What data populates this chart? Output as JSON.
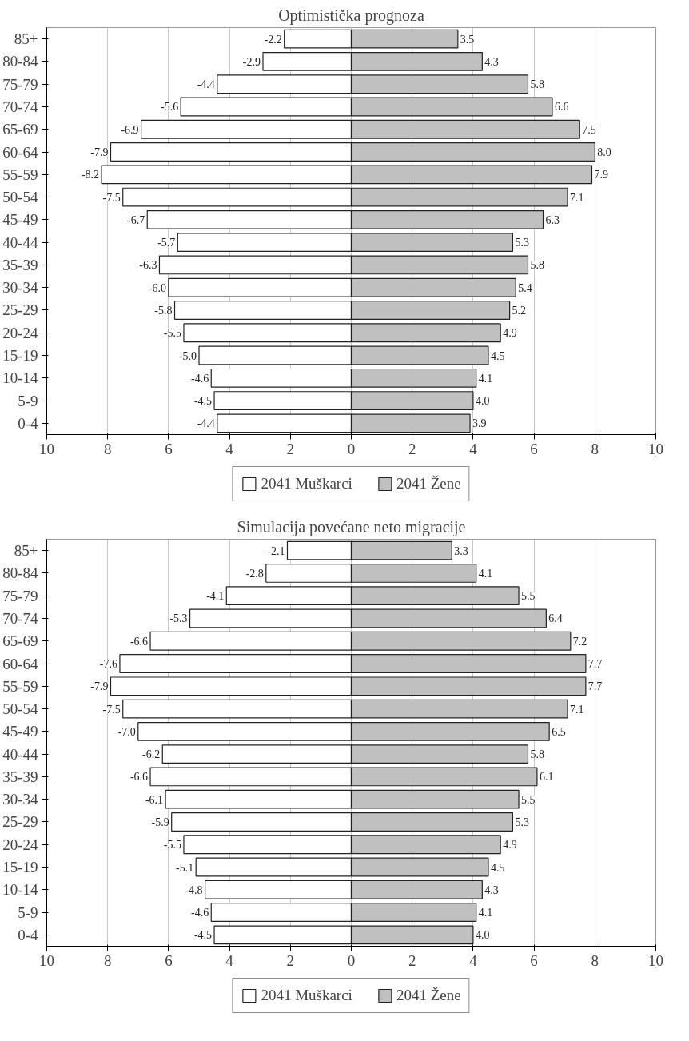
{
  "chart_data": [
    {
      "type": "bar",
      "orientation": "horizontal",
      "stacked": true,
      "title": "Optimistička prognoza",
      "categories": [
        "85+",
        "80-84",
        "75-79",
        "70-74",
        "65-69",
        "60-64",
        "55-59",
        "50-54",
        "45-49",
        "40-44",
        "35-39",
        "30-34",
        "25-29",
        "20-24",
        "15-19",
        "10-14",
        "5-9",
        "0-4"
      ],
      "series": [
        {
          "name": "2041 Muškarci",
          "color": "#ffffff",
          "values": [
            -2.2,
            -2.9,
            -4.4,
            -5.6,
            -6.9,
            -7.9,
            -8.2,
            -7.5,
            -6.7,
            -5.7,
            -6.3,
            -6.0,
            -5.8,
            -5.5,
            -5.0,
            -4.6,
            -4.5,
            -4.4
          ],
          "value_labels": [
            "-2.2",
            "-2.9",
            "-4.4",
            "-5.6",
            "-6.9",
            "-7.9",
            "-8.2",
            "-7.5",
            "-6.7",
            "-5.7",
            "-6.3",
            "-6.0",
            "-5.8",
            "-5.5",
            "-5.0",
            "-4.6",
            "-4.5",
            "-4.4"
          ]
        },
        {
          "name": "2041 Žene",
          "color": "#c0c0c0",
          "values": [
            3.5,
            4.3,
            5.8,
            6.6,
            7.5,
            8.0,
            7.9,
            7.1,
            6.3,
            5.3,
            5.8,
            5.4,
            5.2,
            4.9,
            4.5,
            4.1,
            4.0,
            3.9
          ],
          "value_labels": [
            "3.5",
            "4.3",
            "5.8",
            "6.6",
            "7.5",
            "8.0",
            "7.9",
            "7.1",
            "6.3",
            "5.3",
            "5.8",
            "5.4",
            "5.2",
            "4.9",
            "4.5",
            "4.1",
            "4.0",
            "3.9"
          ]
        }
      ],
      "xlim": [
        -10,
        10
      ],
      "xticks": [
        {
          "value": -10,
          "label": "10"
        },
        {
          "value": -8,
          "label": "8"
        },
        {
          "value": -6,
          "label": "6"
        },
        {
          "value": -4,
          "label": "4"
        },
        {
          "value": -2,
          "label": "2"
        },
        0,
        2,
        4,
        6,
        8,
        10
      ],
      "grid": "x",
      "legend": "bottom"
    },
    {
      "type": "bar",
      "orientation": "horizontal",
      "stacked": true,
      "title": "Simulacija povećane neto migracije",
      "categories": [
        "85+",
        "80-84",
        "75-79",
        "70-74",
        "65-69",
        "60-64",
        "55-59",
        "50-54",
        "45-49",
        "40-44",
        "35-39",
        "30-34",
        "25-29",
        "20-24",
        "15-19",
        "10-14",
        "5-9",
        "0-4"
      ],
      "series": [
        {
          "name": "2041 Muškarci",
          "color": "#ffffff",
          "values": [
            -2.1,
            -2.8,
            -4.1,
            -5.3,
            -6.6,
            -7.6,
            -7.9,
            -7.5,
            -7.0,
            -6.2,
            -6.6,
            -6.1,
            -5.9,
            -5.5,
            -5.1,
            -4.8,
            -4.6,
            -4.5
          ],
          "value_labels": [
            "-2.1",
            "-2.8",
            "-4.1",
            "-5.3",
            "-6.6",
            "-7.6",
            "-7.9",
            "-7.5",
            "-7.0",
            "-6.2",
            "-6.6",
            "-6.1",
            "-5.9",
            "-5.5",
            "-5.1",
            "-4.8",
            "-4.6",
            "-4.5"
          ]
        },
        {
          "name": "2041 Žene",
          "color": "#c0c0c0",
          "values": [
            3.3,
            4.1,
            5.5,
            6.4,
            7.2,
            7.7,
            7.7,
            7.1,
            6.5,
            5.8,
            6.1,
            5.5,
            5.3,
            4.9,
            4.5,
            4.3,
            4.1,
            4.0
          ],
          "value_labels": [
            "3.3",
            "4.1",
            "5.5",
            "6.4",
            "7.2",
            "7.7",
            "7.7",
            "7.1",
            "6.5",
            "5.8",
            "6.1",
            "5.5",
            "5.3",
            "4.9",
            "4.5",
            "4.3",
            "4.1",
            "4.0"
          ]
        }
      ],
      "xlim": [
        -10,
        10
      ],
      "xticks": [
        {
          "value": -10,
          "label": "10"
        },
        {
          "value": -8,
          "label": "8"
        },
        {
          "value": -6,
          "label": "6"
        },
        {
          "value": -4,
          "label": "4"
        },
        {
          "value": -2,
          "label": "2"
        },
        0,
        2,
        4,
        6,
        8,
        10
      ],
      "grid": "x",
      "legend": "bottom"
    }
  ]
}
